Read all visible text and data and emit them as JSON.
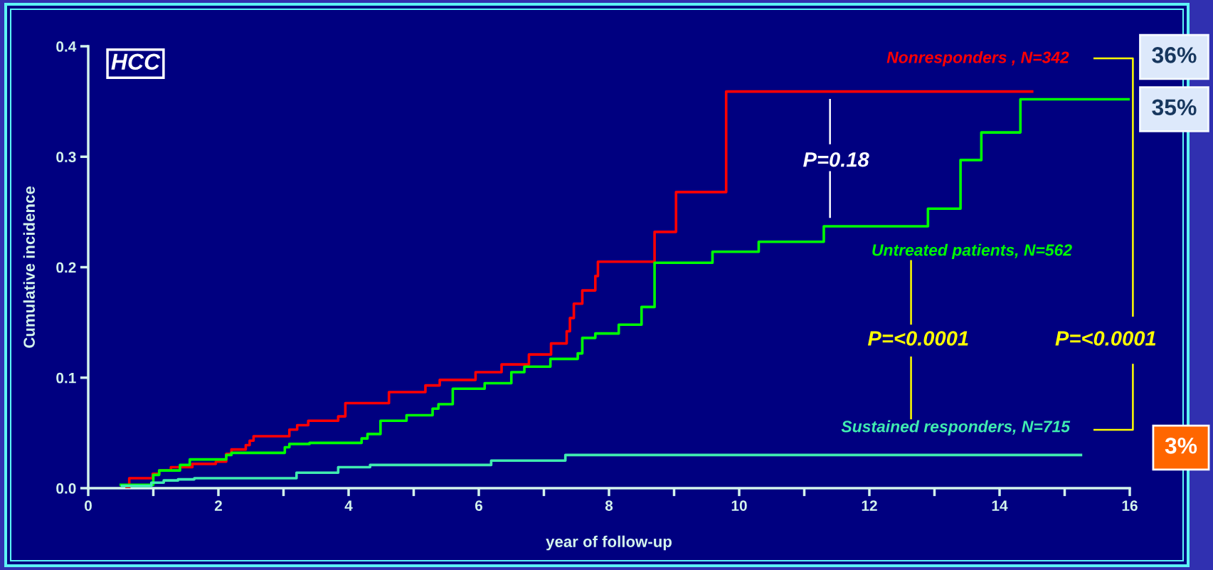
{
  "chart_data": {
    "type": "step",
    "xlabel": "year of follow-up",
    "ylabel": "Cumulative incidence",
    "annotations": [
      "HCC",
      "P=0.18",
      "P=<0.0001",
      "P=<0.0001",
      "36%",
      "35%",
      "3%"
    ],
    "series": [
      {
        "name": "Nonresponders , N=342",
        "color": "#ff0000",
        "x": [
          0.57,
          0.63,
          0.99,
          1.09,
          1.27,
          1.6,
          1.96,
          2.12,
          2.2,
          2.42,
          2.48,
          2.54,
          3.09,
          3.21,
          3.38,
          3.84,
          3.95,
          4.62,
          5.18,
          5.4,
          5.95,
          6.35,
          6.77,
          7.11,
          7.35,
          7.4,
          7.46,
          7.59,
          7.79,
          7.83,
          8.7,
          9.03,
          9.8,
          14.52
        ],
        "values": [
          0.0,
          0.009,
          0.013,
          0.016,
          0.019,
          0.022,
          0.024,
          0.031,
          0.035,
          0.039,
          0.043,
          0.047,
          0.053,
          0.057,
          0.061,
          0.065,
          0.077,
          0.087,
          0.093,
          0.098,
          0.105,
          0.112,
          0.121,
          0.131,
          0.142,
          0.154,
          0.167,
          0.179,
          0.192,
          0.205,
          0.232,
          0.268,
          0.359,
          0.359
        ]
      },
      {
        "name": "Untreated patients, N=562",
        "color": "#00ff00",
        "x": [
          0.48,
          1.0,
          1.09,
          1.41,
          1.56,
          2.12,
          2.2,
          3.02,
          3.09,
          3.4,
          4.2,
          4.29,
          4.49,
          4.89,
          5.29,
          5.38,
          5.6,
          6.09,
          6.5,
          6.7,
          7.1,
          7.52,
          7.59,
          7.79,
          8.15,
          8.5,
          8.7,
          9.59,
          10.3,
          11.3,
          12.9,
          13.4,
          13.72,
          14.32,
          16.0
        ],
        "values": [
          0.003,
          0.012,
          0.016,
          0.021,
          0.026,
          0.03,
          0.032,
          0.037,
          0.04,
          0.041,
          0.045,
          0.049,
          0.061,
          0.066,
          0.072,
          0.076,
          0.09,
          0.095,
          0.105,
          0.11,
          0.117,
          0.122,
          0.136,
          0.14,
          0.148,
          0.164,
          0.204,
          0.214,
          0.223,
          0.237,
          0.253,
          0.297,
          0.322,
          0.352,
          0.352
        ]
      },
      {
        "name": "Sustained responders, N=715",
        "color": "#40ecb0",
        "x": [
          0.5,
          0.97,
          1.16,
          1.38,
          1.63,
          3.2,
          3.84,
          4.33,
          6.19,
          7.33,
          15.27
        ],
        "values": [
          0.002,
          0.005,
          0.007,
          0.008,
          0.009,
          0.014,
          0.019,
          0.021,
          0.025,
          0.03,
          0.03
        ]
      }
    ],
    "xlim": [
      0,
      16
    ],
    "ylim": [
      0,
      0.4
    ],
    "xticks": [
      0,
      {
        "value": 1,
        "label": null
      },
      2,
      {
        "value": 3,
        "label": null
      },
      4,
      {
        "value": 5,
        "label": null
      },
      6,
      {
        "value": 7,
        "label": null
      },
      8,
      {
        "value": 9,
        "label": null
      },
      10,
      {
        "value": 11,
        "label": null
      },
      12,
      {
        "value": 13,
        "label": null
      },
      14,
      {
        "value": 15,
        "label": null
      },
      16
    ],
    "yticks": [
      {
        "value": 0,
        "label": "0.0"
      },
      0.1,
      0.2,
      0.3,
      0.4
    ]
  }
}
